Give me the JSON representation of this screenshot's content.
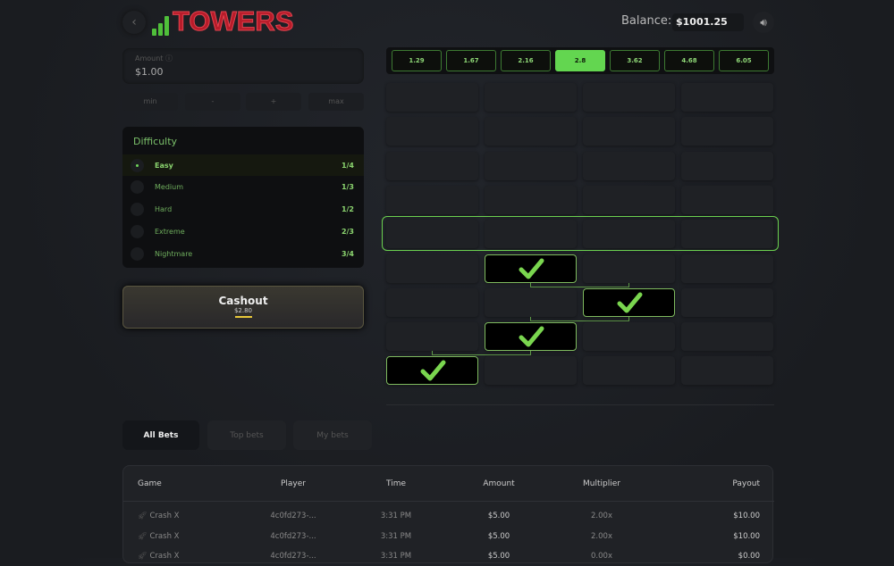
{
  "header": {
    "logo_text": "TOWERS",
    "balance_label": "Balance:",
    "balance_value": "$1001.25",
    "back_icon": "chevron-left-icon",
    "sound_icon": "speaker-icon"
  },
  "bet": {
    "amount_label": "Amount ⓘ",
    "amount_value": "$1.00",
    "buttons": [
      "min",
      "-",
      "+",
      "max"
    ]
  },
  "difficulty": {
    "title": "Difficulty",
    "selected": "Easy",
    "options": [
      {
        "name": "Easy",
        "odds": "1/4"
      },
      {
        "name": "Medium",
        "odds": "1/3"
      },
      {
        "name": "Hard",
        "odds": "1/2"
      },
      {
        "name": "Extreme",
        "odds": "2/3"
      },
      {
        "name": "Nightmare",
        "odds": "3/4"
      }
    ]
  },
  "cashout": {
    "label": "Cashout",
    "amount": "$2.80"
  },
  "multipliers": {
    "values": [
      "1.29",
      "1.67",
      "2.16",
      "2.8",
      "3.62",
      "4.68",
      "6.05"
    ],
    "active": "2.8"
  },
  "tower": {
    "columns": 4,
    "rows_top_to_bottom": [
      null,
      null,
      null,
      null,
      "active",
      1,
      2,
      1,
      0
    ],
    "accent": "#63d650"
  },
  "tabs": [
    {
      "label": "All Bets",
      "active": true
    },
    {
      "label": "Top bets"
    },
    {
      "label": "My bets"
    }
  ],
  "bets_table": {
    "columns": [
      "Game",
      "Player",
      "Time",
      "Amount",
      "Multiplier",
      "Payout"
    ],
    "rows": [
      [
        "Crash X",
        "4c0fd273-...",
        "3:31 PM",
        "$5.00",
        "2.00x",
        "$10.00"
      ],
      [
        "Crash X",
        "4c0fd273-...",
        "3:31 PM",
        "$5.00",
        "2.00x",
        "$10.00"
      ],
      [
        "Crash X",
        "4c0fd273-...",
        "3:31 PM",
        "$5.00",
        "0.00x",
        "$0.00"
      ]
    ]
  }
}
